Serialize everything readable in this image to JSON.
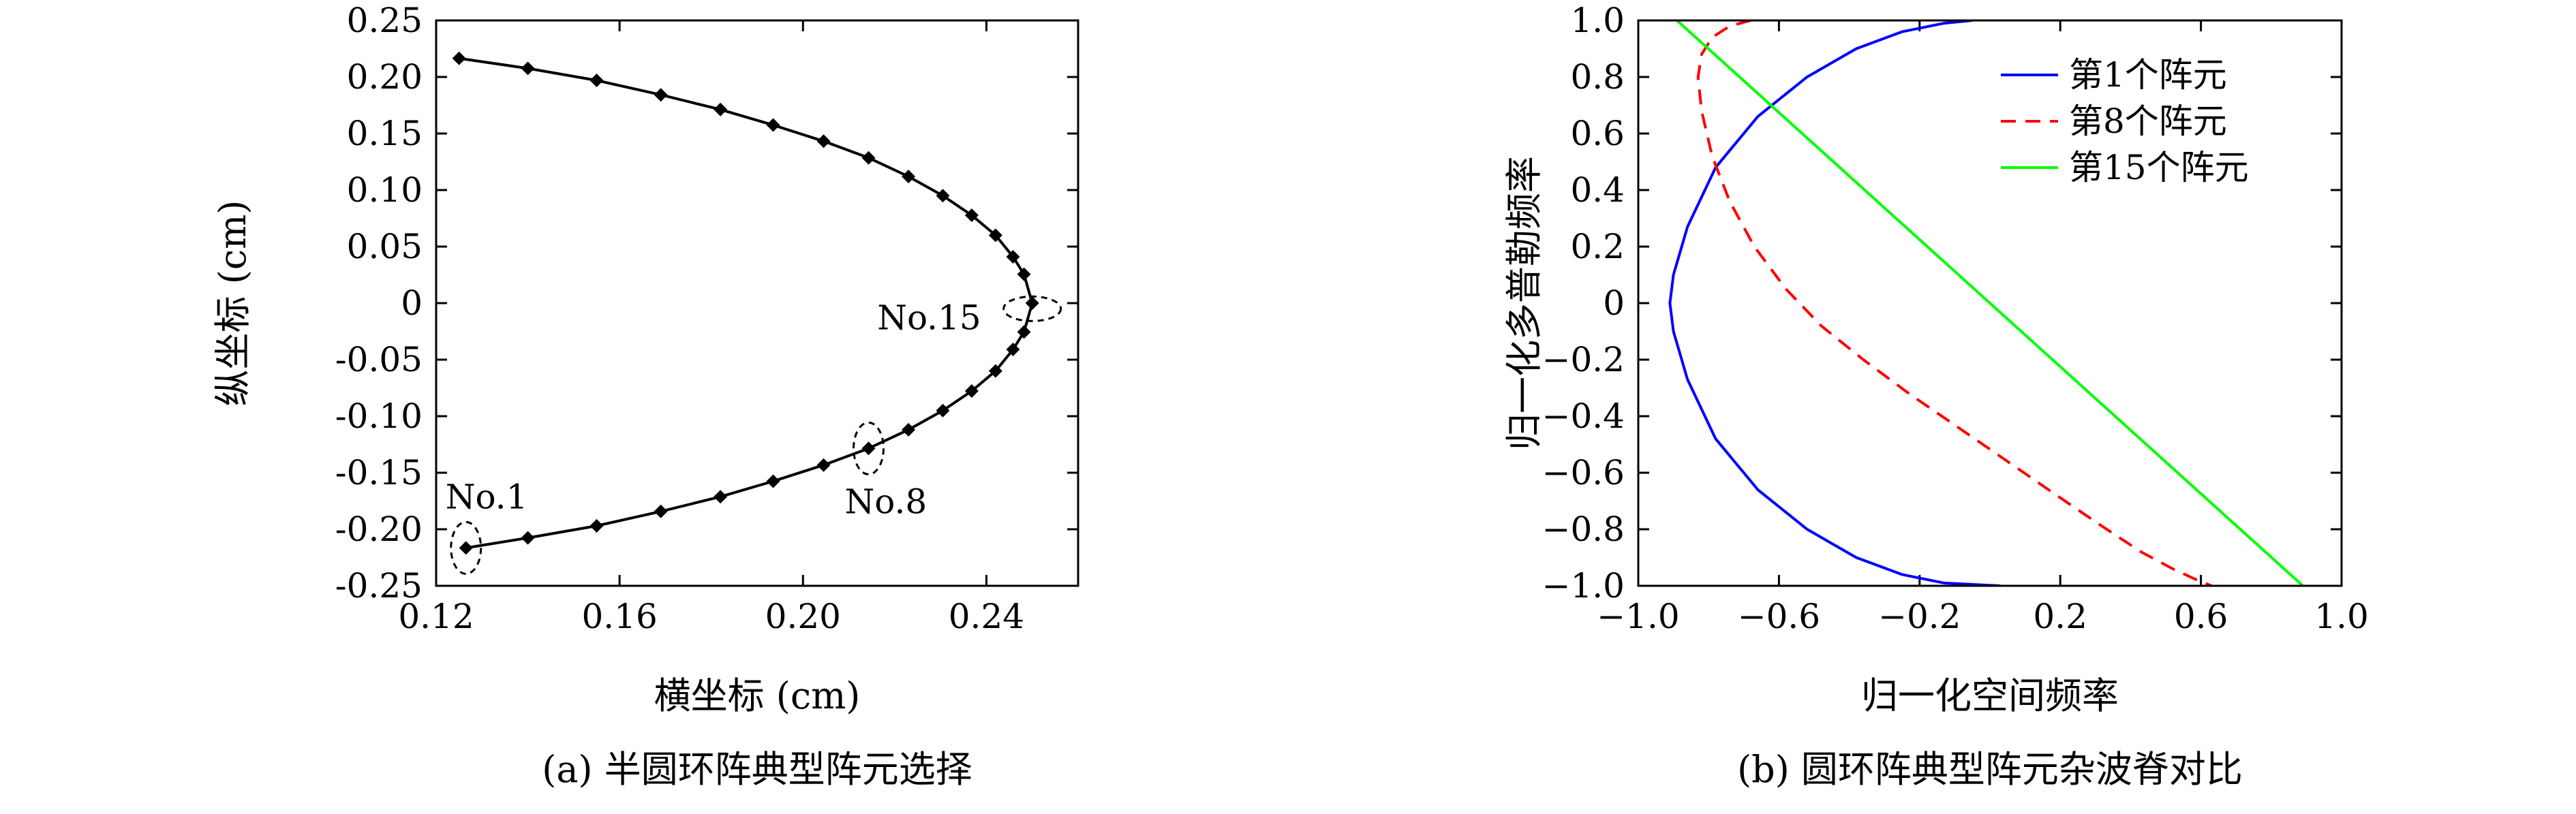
{
  "chart_data": [
    {
      "type": "line",
      "caption": "(a) 半圆环阵典型阵元选择",
      "xlabel": "横坐标 (cm)",
      "ylabel": "纵坐标 (cm)",
      "xlim": [
        0.12,
        0.26
      ],
      "ylim": [
        -0.25,
        0.25
      ],
      "xticks": [
        "0.12",
        "0.16",
        "0.20",
        "0.24"
      ],
      "xtick_values": [
        0.12,
        0.16,
        0.2,
        0.24
      ],
      "yticks": [
        "0.25",
        "0.20",
        "0.15",
        "0.10",
        "0.05",
        "0",
        "-0.05",
        "-0.10",
        "-0.15",
        "-0.20",
        "-0.25"
      ],
      "ytick_values": [
        0.25,
        0.2,
        0.15,
        0.1,
        0.05,
        0,
        -0.05,
        -0.1,
        -0.15,
        -0.2,
        -0.25
      ],
      "grid": false,
      "series": [
        {
          "marker": "diamond",
          "color": "#000000",
          "x": [
            0.125,
            0.14,
            0.155,
            0.169,
            0.182,
            0.1935,
            0.2045,
            0.2143,
            0.223,
            0.2305,
            0.2368,
            0.242,
            0.2458,
            0.2482,
            0.25,
            0.2482,
            0.2458,
            0.242,
            0.2368,
            0.2305,
            0.223,
            0.2143,
            0.2045,
            0.1935,
            0.182,
            0.169,
            0.155,
            0.14,
            0.1265
          ],
          "y": [
            0.2165,
            0.2076,
            0.197,
            0.1842,
            0.1712,
            0.1575,
            0.1432,
            0.1285,
            0.112,
            0.095,
            0.0777,
            0.06,
            0.041,
            0.0255,
            0.0,
            -0.0255,
            -0.041,
            -0.06,
            -0.0777,
            -0.095,
            -0.112,
            -0.1285,
            -0.1432,
            -0.1575,
            -0.1712,
            -0.1842,
            -0.197,
            -0.2076,
            -0.2165
          ]
        }
      ],
      "annotations": [
        {
          "text": "No.1",
          "x": 0.1265,
          "y": -0.2165
        },
        {
          "text": "No.8",
          "x": 0.2143,
          "y": -0.1285
        },
        {
          "text": "No.15",
          "x": 0.25,
          "y": -0.005
        }
      ]
    },
    {
      "type": "line",
      "caption": "(b) 圆环阵典型阵元杂波脊对比",
      "xlabel": "归一化空间频率",
      "ylabel": "归一化多普勒频率",
      "xlim": [
        -1.0,
        1.0
      ],
      "ylim": [
        -1.0,
        1.0
      ],
      "xticks": [
        "−1.0",
        "−0.6",
        "−0.2",
        "0.2",
        "0.6",
        "1.0"
      ],
      "xtick_values": [
        -1.0,
        -0.6,
        -0.2,
        0.2,
        0.6,
        1.0
      ],
      "yticks": [
        "1.0",
        "0.8",
        "0.6",
        "0.4",
        "0.2",
        "0",
        "−0.2",
        "−0.4",
        "−0.6",
        "−0.8",
        "−1.0"
      ],
      "ytick_values": [
        1.0,
        0.8,
        0.6,
        0.4,
        0.2,
        0,
        -0.2,
        -0.4,
        -0.6,
        -0.8,
        -1.0
      ],
      "grid": false,
      "legend_position": "top-right",
      "series": [
        {
          "name": "第1个阵元",
          "color": "#0000ff",
          "dash": "solid",
          "x": [
            -0.05,
            -0.13,
            -0.25,
            -0.38,
            -0.52,
            -0.66,
            -0.78,
            -0.86,
            -0.9,
            -0.91,
            -0.9,
            -0.86,
            -0.78,
            -0.66,
            -0.52,
            -0.38,
            -0.25,
            -0.13,
            0.03
          ],
          "y": [
            1.0,
            0.99,
            0.96,
            0.9,
            0.8,
            0.66,
            0.48,
            0.27,
            0.1,
            0.0,
            -0.1,
            -0.27,
            -0.48,
            -0.66,
            -0.8,
            -0.9,
            -0.96,
            -0.99,
            -1.0
          ]
        },
        {
          "name": "第8个阵元",
          "color": "#ff0000",
          "dash": "dashed",
          "x": [
            -0.68,
            -0.74,
            -0.79,
            -0.82,
            -0.83,
            -0.82,
            -0.79,
            -0.74,
            -0.67,
            -0.58,
            -0.48,
            -0.36,
            -0.23,
            -0.09,
            0.05,
            0.19,
            0.32,
            0.43,
            0.52,
            0.59,
            0.63
          ],
          "y": [
            1.0,
            0.98,
            0.94,
            0.88,
            0.8,
            0.68,
            0.52,
            0.36,
            0.2,
            0.05,
            -0.08,
            -0.2,
            -0.32,
            -0.44,
            -0.56,
            -0.68,
            -0.79,
            -0.88,
            -0.94,
            -0.98,
            -1.0
          ]
        },
        {
          "name": "第15个阵元",
          "color": "#00ff00",
          "dash": "solid",
          "x": [
            -0.89,
            0.89
          ],
          "y": [
            1.0,
            -1.0
          ]
        }
      ]
    }
  ]
}
